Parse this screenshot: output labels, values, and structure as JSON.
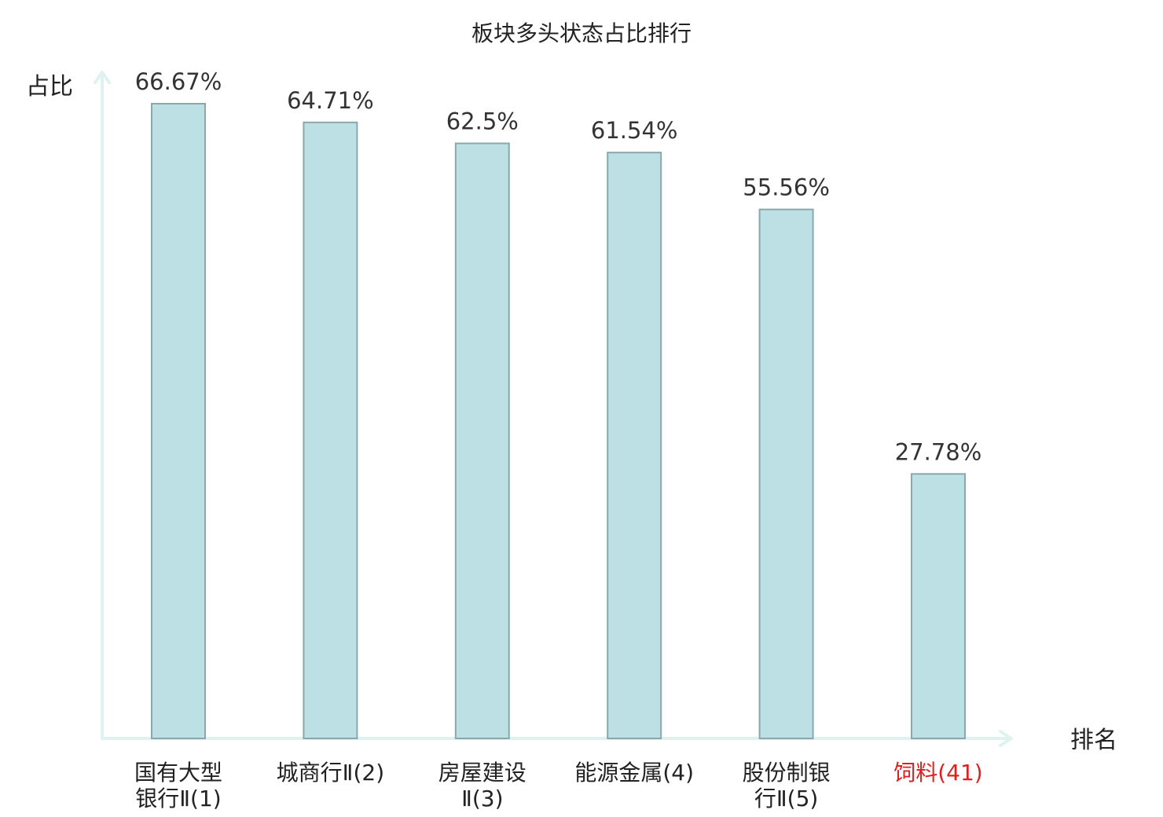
{
  "chart_data": {
    "type": "bar",
    "title": "板块多头状态占比排行",
    "ylabel": "占比",
    "xlabel": "排名",
    "ylim": [
      0,
      70
    ],
    "grid": false,
    "categories": [
      [
        "国有大型",
        "银行Ⅱ(1)"
      ],
      [
        "城商行Ⅱ(2)"
      ],
      [
        "房屋建设",
        "Ⅱ(3)"
      ],
      [
        "能源金属(4)"
      ],
      [
        "股份制银",
        "行Ⅱ(5)"
      ],
      [
        "饲料(41)"
      ]
    ],
    "values": [
      66.67,
      64.71,
      62.5,
      61.54,
      55.56,
      27.78
    ],
    "value_labels": [
      "66.67%",
      "64.71%",
      "62.5%",
      "61.54%",
      "55.56%",
      "27.78%"
    ],
    "label_colors": [
      "#222222",
      "#222222",
      "#222222",
      "#222222",
      "#222222",
      "#e02020"
    ],
    "bar_color": "#bce0e3",
    "bar_border": "#8aa8aa",
    "axis_color": "#dff2ef"
  }
}
